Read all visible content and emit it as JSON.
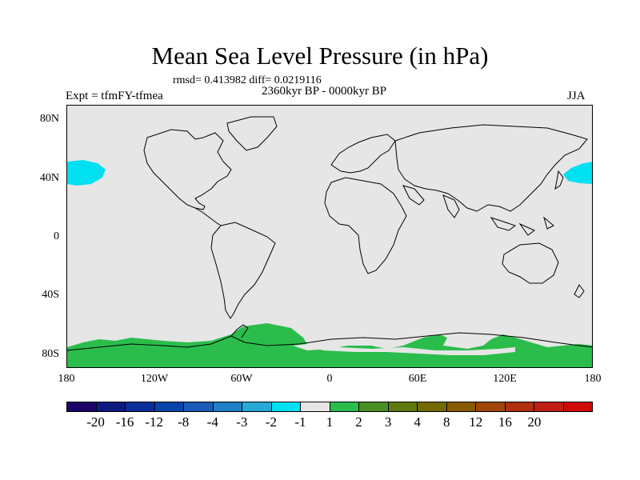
{
  "title": "Mean Sea Level Pressure (in hPa)",
  "stats": "rmsd= 0.413982 diff= 0.0219116",
  "period": "2360kyr BP - 0000kyr BP",
  "experiment": "Expt = tfmFY-tfmea",
  "season": "JJA",
  "lat_labels": [
    "80N",
    "40N",
    "0",
    "40S",
    "80S"
  ],
  "lon_labels": [
    "180",
    "120W",
    "60W",
    "0",
    "60E",
    "120E",
    "180"
  ],
  "colorbar": {
    "colors": [
      "#1a0566",
      "#0d1a80",
      "#0a2e99",
      "#0a44aa",
      "#1a5cb8",
      "#1f80c8",
      "#27a8d6",
      "#00e0f0",
      "#e6e6e6",
      "#2bbd4c",
      "#4a8f22",
      "#5f7a10",
      "#746a00",
      "#8a5a00",
      "#a0460a",
      "#b03010",
      "#c01e14",
      "#d10a0a"
    ],
    "labels": [
      "-20",
      "-16",
      "-12",
      "-8",
      "-4",
      "-3",
      "-2",
      "-1",
      "1",
      "2",
      "3",
      "4",
      "8",
      "12",
      "16",
      "20"
    ]
  },
  "anomaly_regions": [
    {
      "name": "north-pacific-cyan-west",
      "level": "-2 to -1",
      "color": "#00e0f0"
    },
    {
      "name": "north-pacific-cyan-east",
      "level": "-2 to -1",
      "color": "#00e0f0"
    },
    {
      "name": "antarctic-green",
      "level": "1 to 2",
      "color": "#2bbd4c"
    }
  ]
}
